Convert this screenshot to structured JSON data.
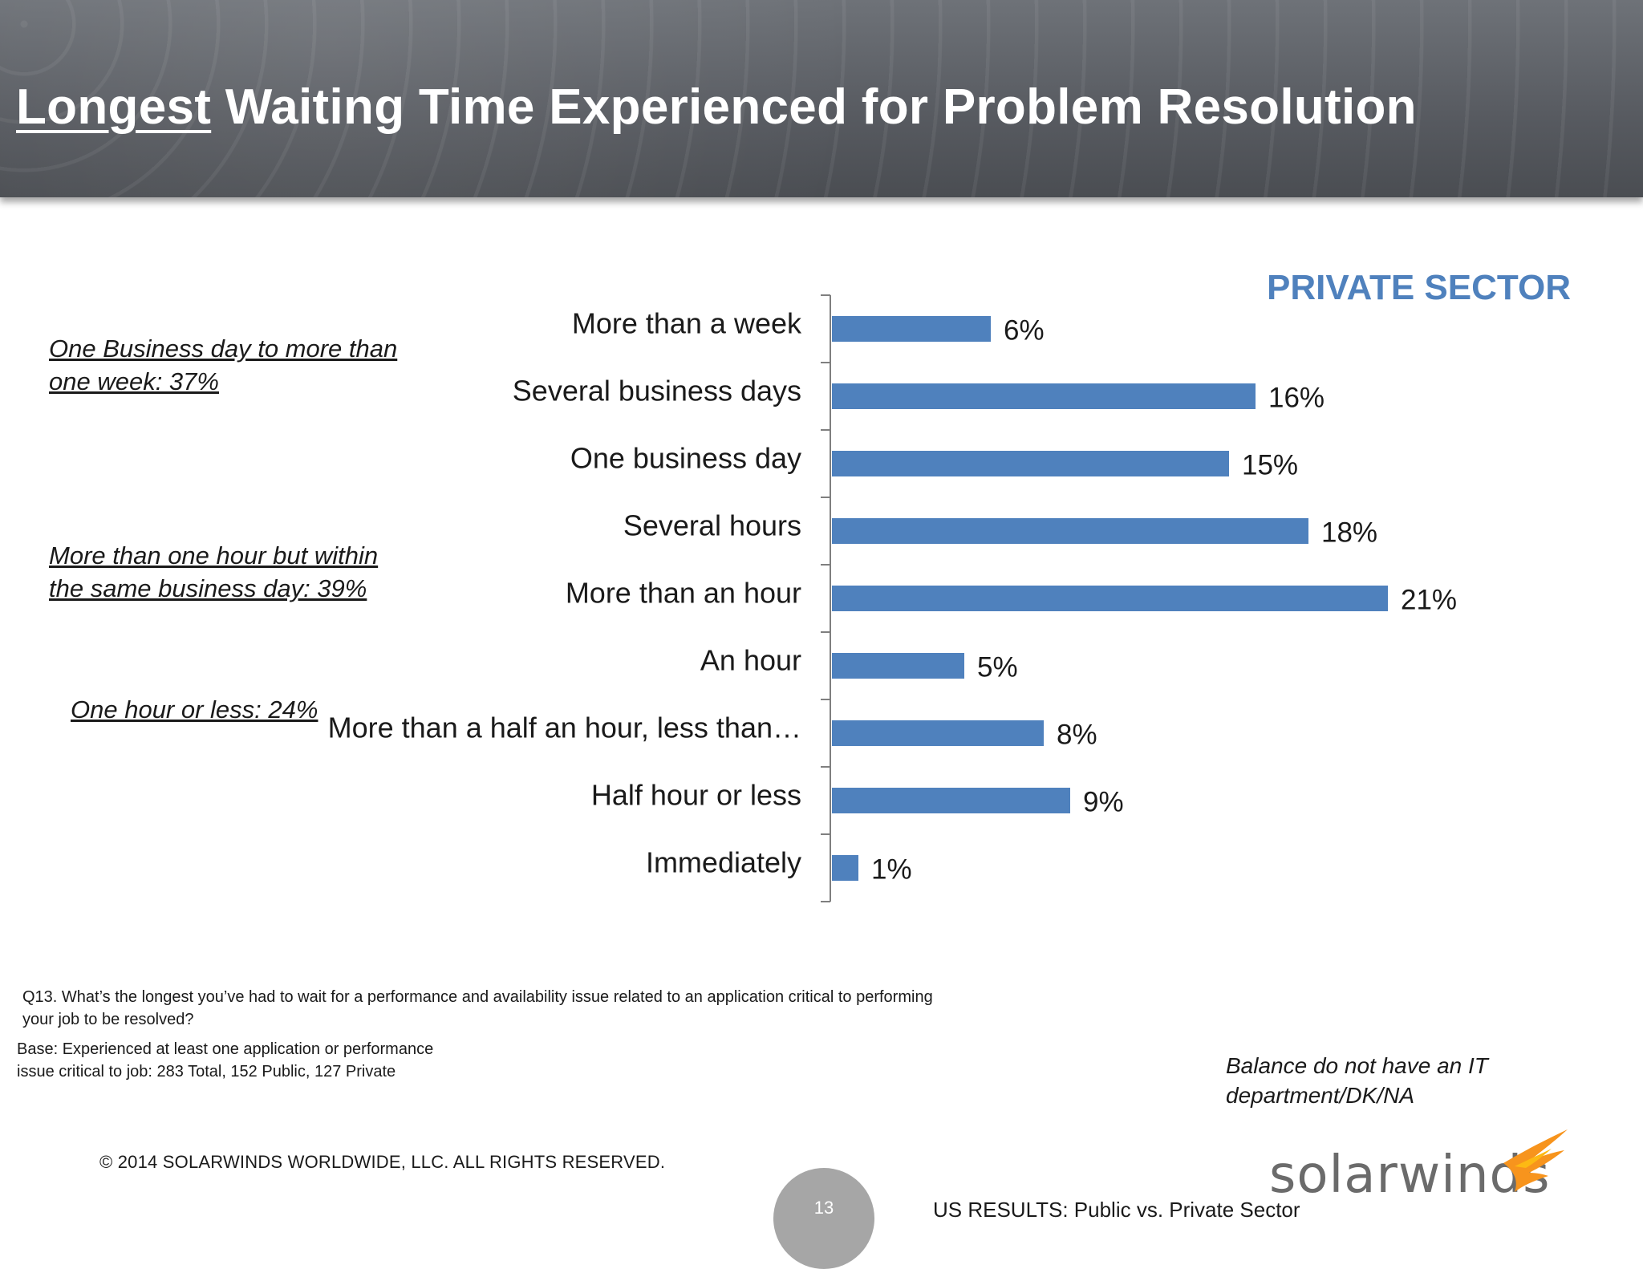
{
  "header": {
    "title_underlined": "Longest",
    "title_rest": " Waiting Time Experienced for Problem Resolution"
  },
  "sector_label": "PRIVATE SECTOR",
  "notes": {
    "business_day": [
      "One Business day to more than",
      "one week:  37%"
    ],
    "within_day": [
      "More than one hour but within",
      "the same business day:  39%"
    ],
    "hour_or_less": "One hour or less:  24%"
  },
  "chart_data": {
    "type": "bar",
    "orientation": "horizontal",
    "categories": [
      "More than a week",
      "Several business days",
      "One business day",
      "Several hours",
      "More than an hour",
      "An hour",
      "More than a half an hour, less than…",
      "Half hour or less",
      "Immediately"
    ],
    "values": [
      6,
      16,
      15,
      18,
      21,
      5,
      8,
      9,
      1
    ],
    "data_labels": [
      "6%",
      "16%",
      "15%",
      "18%",
      "21%",
      "5%",
      "8%",
      "9%",
      "1%"
    ],
    "unit": "%",
    "xlim": [
      0,
      25
    ],
    "grid": false,
    "colors": {
      "bar": "#4f81bd"
    }
  },
  "footnotes": {
    "question": [
      "Q13. What’s the longest you’ve had to wait for a performance and availability issue related to an application critical to performing",
      "your job to be resolved?"
    ],
    "base": [
      "Base:  Experienced at least one  application or performance",
      "issue critical to job:  283 Total, 152 Public, 127 Private"
    ],
    "balance": [
      "Balance do not have an IT",
      "department/DK/NA"
    ]
  },
  "footer": {
    "copyright": "© 2014 SOLARWINDS WORLDWIDE, LLC.  ALL RIGHTS RESERVED.",
    "page_number": "13",
    "us_results": "US RESULTS:  Public vs. Private Sector",
    "logo_text": "solarwinds",
    "logo_icon": "flame-icon",
    "logo_color": "#f7941d"
  }
}
